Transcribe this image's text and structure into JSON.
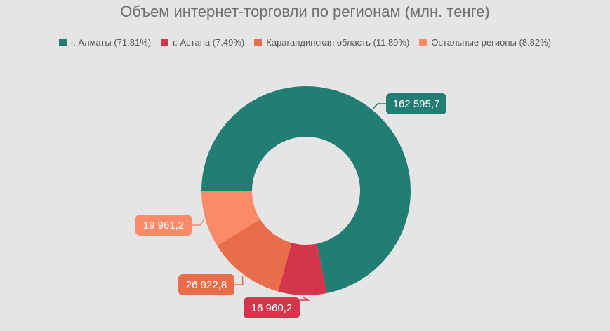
{
  "chart_data": {
    "type": "pie",
    "title": "Объем интернет-торговли по регионам (млн. тенге)",
    "series": [
      {
        "name": "г. Алматы",
        "legend": "г. Алматы (71.81%)",
        "value": 162595.7,
        "percent": 71.81,
        "label": "162 595,7",
        "color": "#227e73"
      },
      {
        "name": "г. Астана",
        "legend": "г. Астана (7.49%)",
        "value": 16960.2,
        "percent": 7.49,
        "label": "16 960,2",
        "color": "#d3364a"
      },
      {
        "name": "Карагандинская область",
        "legend": "Карагандинская область (11.89%)",
        "value": 26922.8,
        "percent": 11.89,
        "label": "26 922,8",
        "color": "#e96d4a"
      },
      {
        "name": "Остальные регионы",
        "legend": "Остальные регионы (8.82%)",
        "value": 19961.2,
        "percent": 8.82,
        "label": "19 961,2",
        "color": "#fa8a68"
      }
    ],
    "legend_position": "top-center",
    "grid": false
  }
}
